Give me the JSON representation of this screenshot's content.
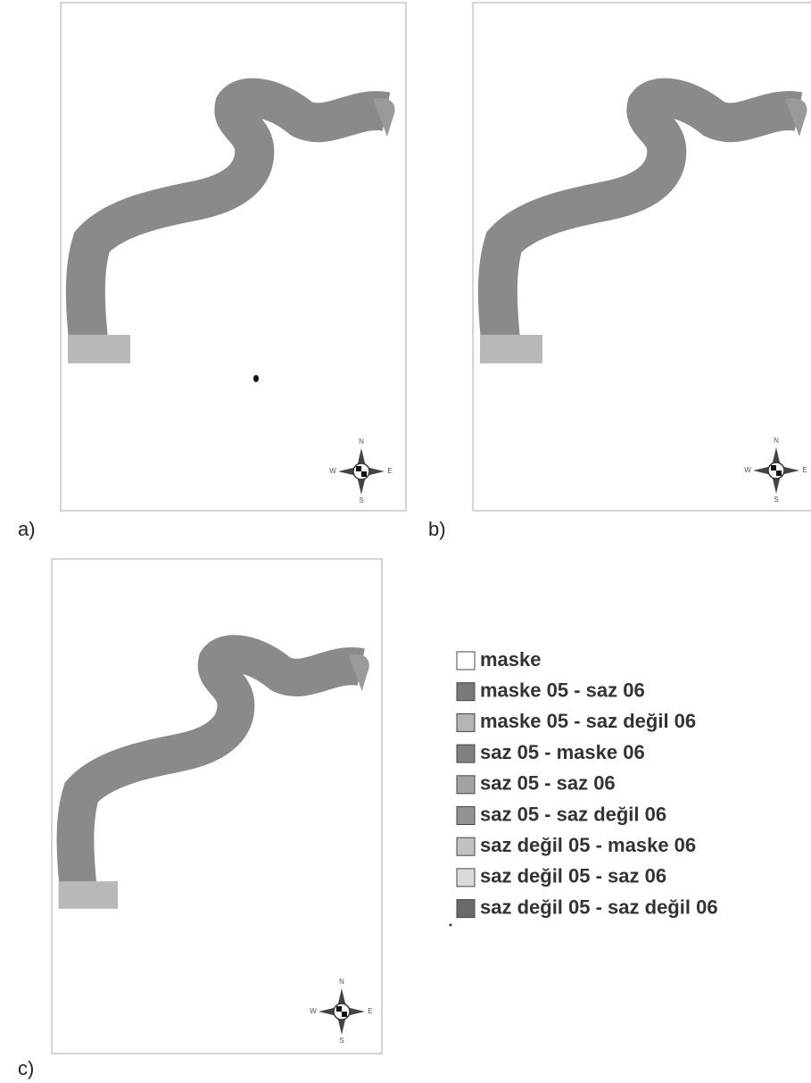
{
  "panels": [
    {
      "label": "a)"
    },
    {
      "label": "b)"
    },
    {
      "label": "c)"
    }
  ],
  "compass": {
    "north": "N",
    "south": "S",
    "west": "W",
    "east": "E"
  },
  "legend": [
    {
      "label": "maske",
      "color": "#ffffff"
    },
    {
      "label": "maske 05 - saz 06",
      "color": "#7a7a7a"
    },
    {
      "label": "maske 05 - saz değil 06",
      "color": "#b4b4b4"
    },
    {
      "label": "saz 05 - maske 06",
      "color": "#808080"
    },
    {
      "label": "saz 05 - saz 06",
      "color": "#a2a2a2"
    },
    {
      "label": "saz 05 - saz değil 06",
      "color": "#929292"
    },
    {
      "label": "saz değil 05 - maske 06",
      "color": "#c2c2c2"
    },
    {
      "label": "saz değil 05 - saz 06",
      "color": "#dadada"
    },
    {
      "label": "saz değil 05 - saz değil 06",
      "color": "#6a6a6a"
    }
  ]
}
